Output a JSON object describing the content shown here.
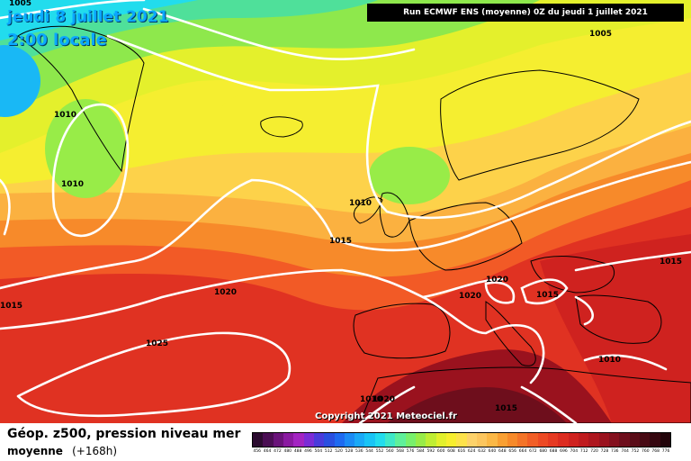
{
  "header": {
    "date": "jeudi 8 juillet 2021",
    "time": "2:00 locale",
    "run": "Run ECMWF ENS (moyenne) 0Z du jeudi 1 juillet 2021"
  },
  "copyright": "Copyright 2021 Meteociel.fr",
  "caption": {
    "line1": "Géop. z500, pression niveau mer",
    "line2": "moyenne",
    "lead": "(+168h)"
  },
  "isobar_labels": [
    "1005",
    "1005",
    "1010",
    "1010",
    "1010",
    "1015",
    "1020",
    "1025",
    "1015",
    "1020",
    "1020",
    "1015",
    "1015",
    "1010",
    "1010",
    "1020",
    "1015"
  ],
  "color_scale": {
    "labels": [
      "456",
      "464",
      "472",
      "480",
      "488",
      "496",
      "504",
      "512",
      "520",
      "528",
      "536",
      "544",
      "552",
      "560",
      "568",
      "576",
      "584",
      "592",
      "600",
      "608",
      "616",
      "624",
      "632",
      "640",
      "648",
      "656",
      "664",
      "672",
      "680",
      "688",
      "696",
      "704",
      "712",
      "720",
      "728",
      "736",
      "744",
      "752",
      "760",
      "768",
      "776"
    ],
    "colors": [
      "#2b0b2f",
      "#4a0e53",
      "#6a137a",
      "#8a1aa1",
      "#a324c2",
      "#7b2cd6",
      "#4a3bdb",
      "#2a4fe0",
      "#1e6af0",
      "#1b8bf5",
      "#1aa9f7",
      "#19c4f5",
      "#22dced",
      "#3fe8c8",
      "#5ff09a",
      "#78f06c",
      "#98ec48",
      "#bfee33",
      "#e2f02c",
      "#f7ee2e",
      "#fde24a",
      "#fdd26a",
      "#fcc65e",
      "#fbb846",
      "#f9a033",
      "#f78a2a",
      "#f47428",
      "#f15e26",
      "#ed4a24",
      "#e63a22",
      "#dc2c20",
      "#cf221f",
      "#c01b1e",
      "#ae161e",
      "#9a121e",
      "#84101e",
      "#6e0e1c",
      "#5a0c18",
      "#480a14",
      "#360710",
      "#22040a"
    ]
  }
}
